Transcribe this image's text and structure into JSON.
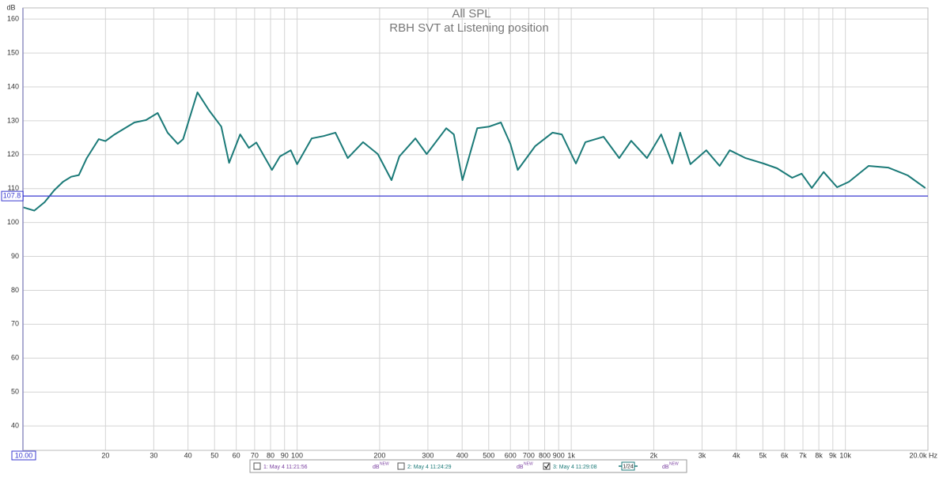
{
  "chart_data": {
    "type": "line",
    "title": "All SPL",
    "subtitle": "RBH SVT at Listening position",
    "ylabel": "dB",
    "log_x": true,
    "grid": true,
    "xlim": [
      10,
      20000
    ],
    "ylim": [
      32.8,
      163.3
    ],
    "xticks": [
      {
        "value": 10,
        "label": "10.00"
      },
      20,
      30,
      40,
      50,
      60,
      70,
      80,
      90,
      100,
      200,
      300,
      400,
      500,
      600,
      700,
      800,
      900,
      {
        "value": 1000,
        "label": "1k"
      },
      {
        "value": 2000,
        "label": "2k"
      },
      {
        "value": 3000,
        "label": "3k"
      },
      {
        "value": 4000,
        "label": "4k"
      },
      {
        "value": 5000,
        "label": "5k"
      },
      {
        "value": 6000,
        "label": "6k"
      },
      {
        "value": 7000,
        "label": "7k"
      },
      {
        "value": 8000,
        "label": "8k"
      },
      {
        "value": 9000,
        "label": "9k"
      },
      {
        "value": 10000,
        "label": "10k"
      },
      {
        "value": 20000,
        "label": "20.0k Hz"
      }
    ],
    "yticks": [
      40,
      50,
      60,
      70,
      80,
      90,
      100,
      110,
      120,
      130,
      140,
      150,
      160
    ],
    "cursor_y": 107.8,
    "x": [
      10,
      11,
      12,
      13,
      14,
      15,
      16,
      17.1,
      18.9,
      20,
      21.6,
      25.5,
      28.1,
      31,
      33.7,
      36.7,
      38.4,
      43.3,
      47.8,
      52.9,
      56.5,
      62,
      66.7,
      71,
      81,
      86.6,
      94.8,
      100,
      113,
      125,
      138,
      153,
      174,
      197,
      221,
      236,
      270,
      297,
      350,
      373,
      401,
      454,
      502,
      554,
      600,
      638,
      738,
      854,
      924,
      1040,
      1126,
      1312,
      1497,
      1654,
      1889,
      2128,
      2337,
      2496,
      2721,
      3108,
      3478,
      3787,
      4323,
      5031,
      5632,
      6397,
      6924,
      7542,
      8330,
      9327,
      10300,
      12150,
      14320,
      16880,
      19560
    ],
    "series": [
      {
        "name": "3: May 4 11:29:08",
        "color": "#1b7a78",
        "checked": true,
        "smoothing": "1/24",
        "values": [
          104.5,
          103.5,
          106,
          109.5,
          112,
          113.5,
          114,
          119,
          124.6,
          124,
          126,
          129.5,
          130.2,
          132.3,
          126.5,
          123.2,
          124.6,
          138.4,
          133,
          128.3,
          117.6,
          126,
          122,
          123.6,
          115.5,
          119.5,
          121.3,
          117.2,
          124.8,
          125.5,
          126.5,
          119,
          123.7,
          120.2,
          112.5,
          119.5,
          124.8,
          120.2,
          127.8,
          126,
          112.5,
          127.8,
          128.3,
          129.5,
          123.2,
          115.5,
          122.5,
          126.5,
          126,
          117.4,
          123.7,
          125.3,
          119,
          124.1,
          119,
          126,
          117.4,
          126.5,
          117.2,
          121.3,
          116.7,
          121.3,
          119,
          117.4,
          116,
          113.2,
          114.4,
          110.2,
          114.9,
          110.4,
          112,
          116.7,
          116.2,
          113.9,
          110.2
        ]
      }
    ],
    "legend": [
      {
        "name": "1: May 4 11:21:56",
        "checked": false
      },
      {
        "name": "2: May 4 11:24:29",
        "checked": false
      }
    ],
    "legend_unit": "dB",
    "legend_unit_sup": "NEW"
  }
}
